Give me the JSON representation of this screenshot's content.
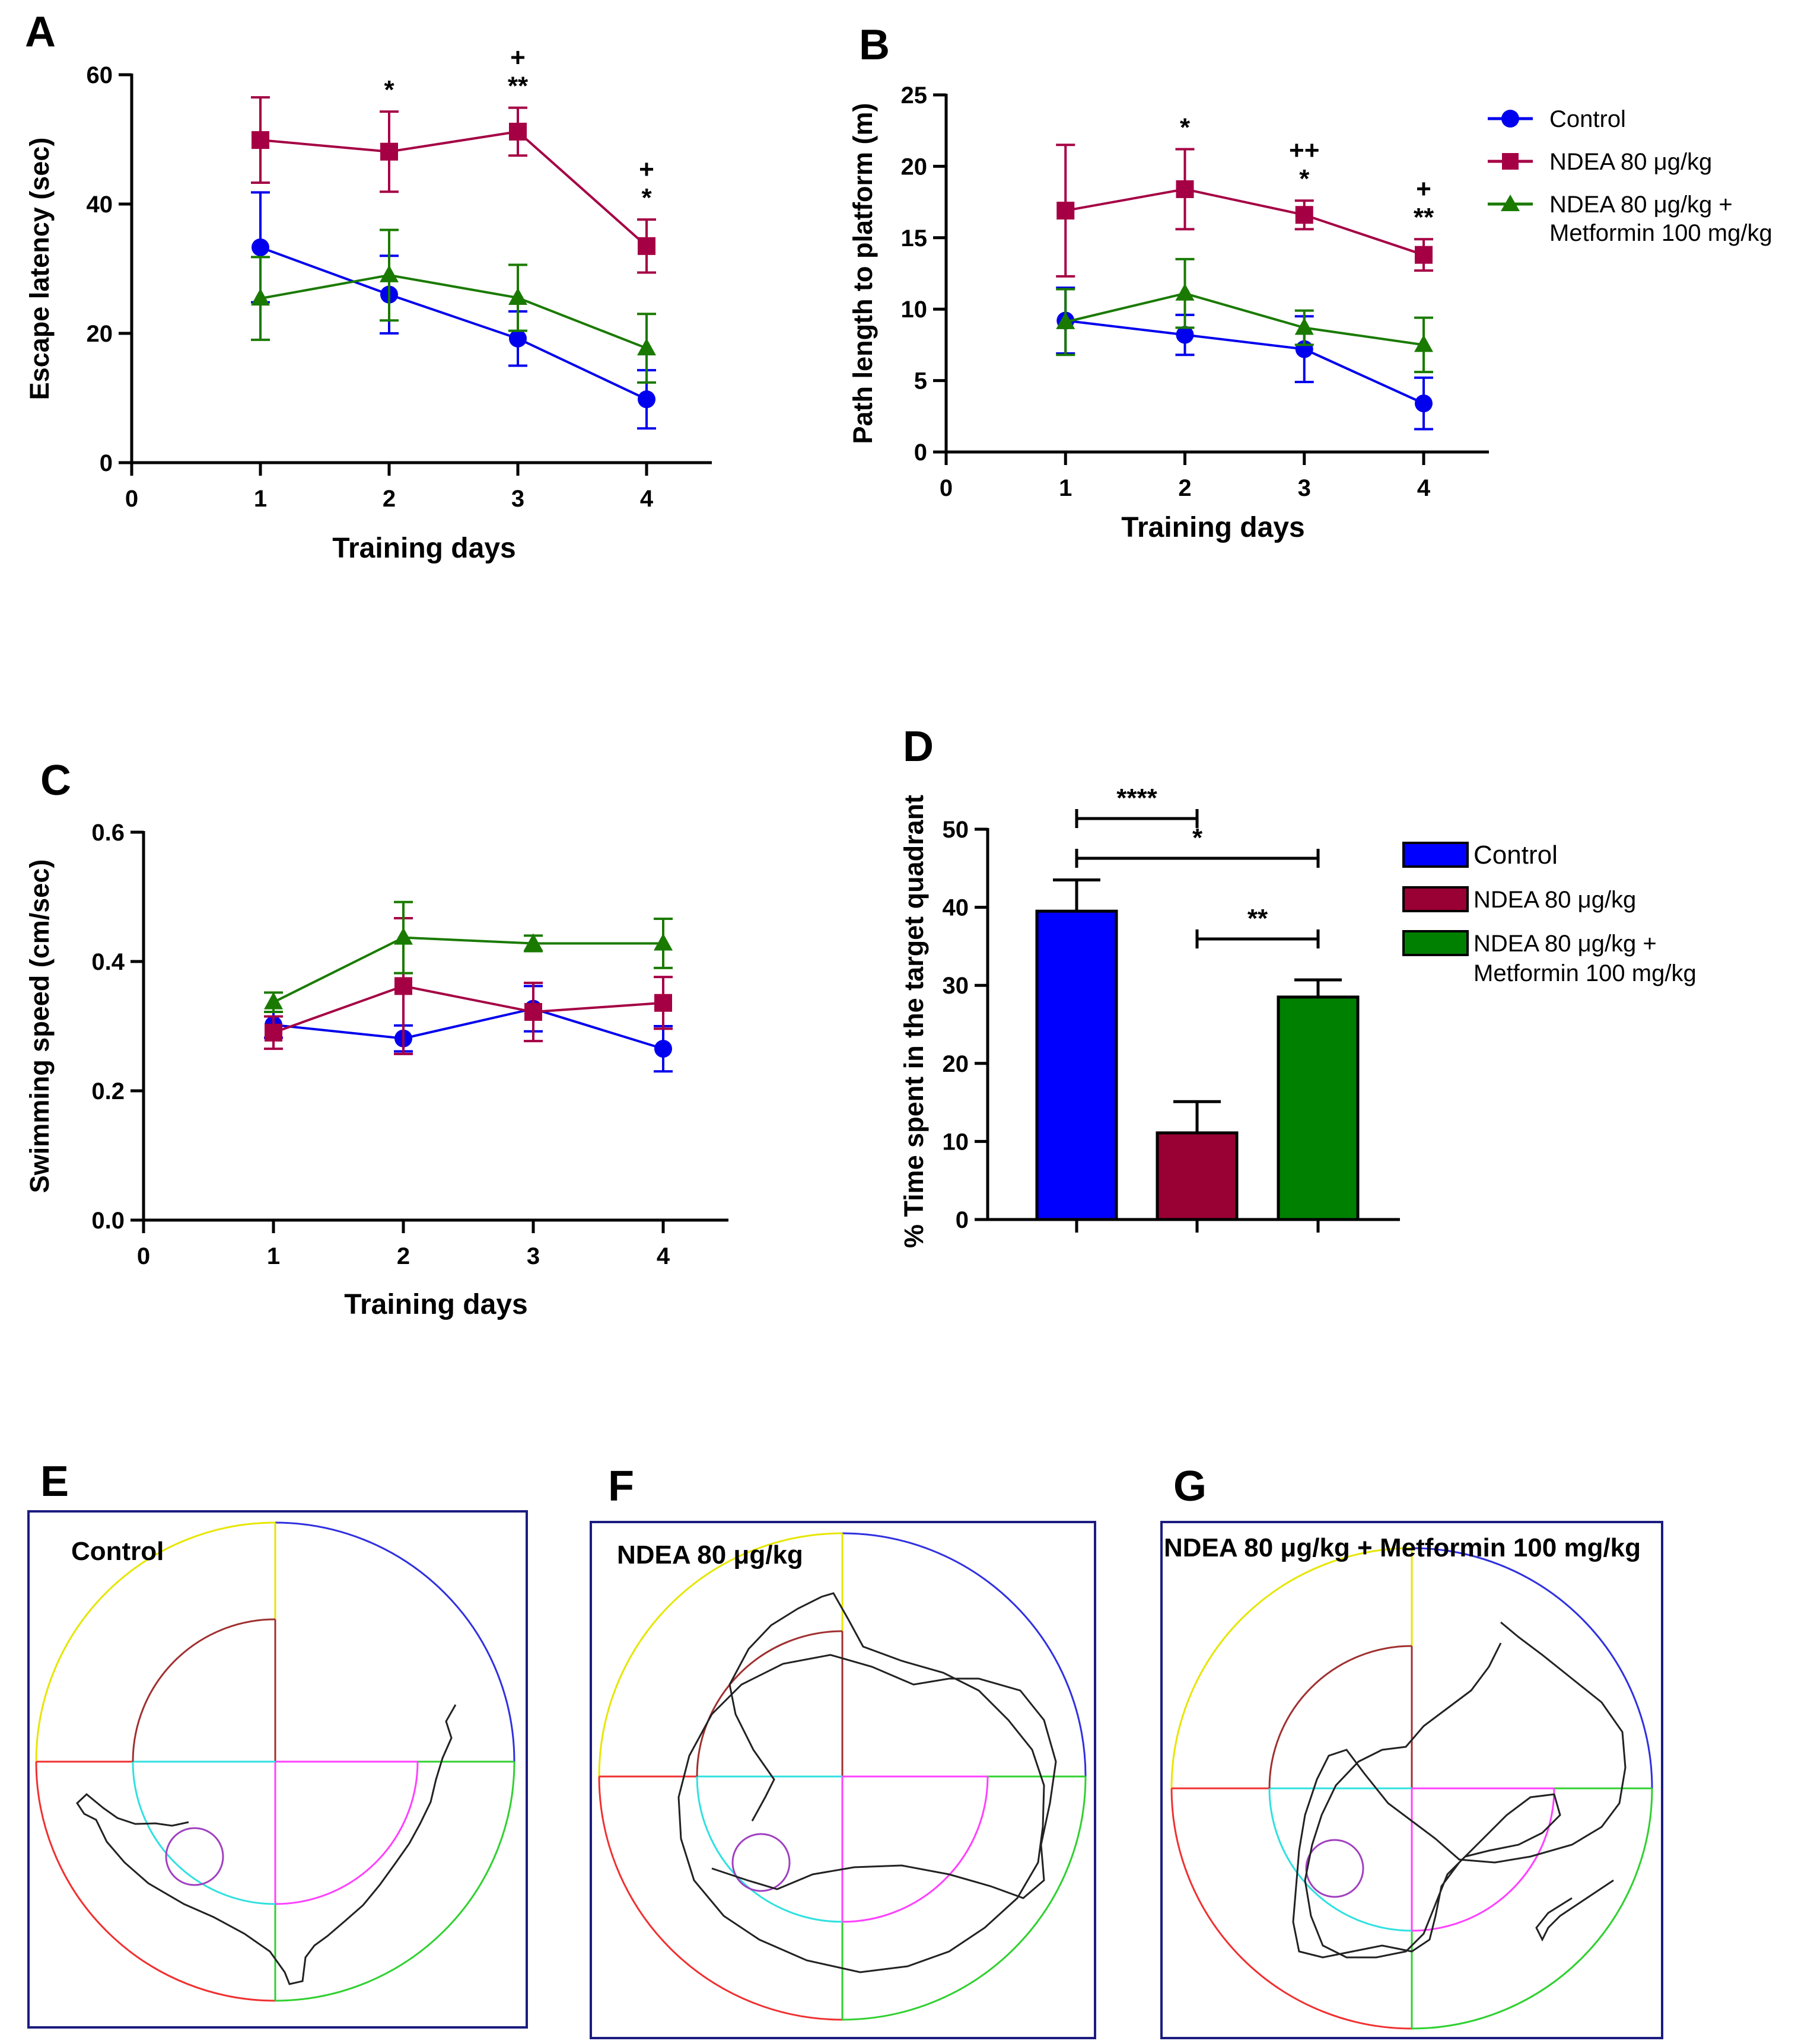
{
  "panels": {
    "A": {
      "letter": "A"
    },
    "B": {
      "letter": "B"
    },
    "C": {
      "letter": "C"
    },
    "D": {
      "letter": "D"
    },
    "E": {
      "letter": "E",
      "title": "Control"
    },
    "F": {
      "letter": "F",
      "title": "NDEA 80 μg/kg"
    },
    "G": {
      "letter": "G",
      "title": "NDEA 80 μg/kg + Metformin 100 mg/kg"
    }
  },
  "legend_lines": [
    {
      "label": "Control",
      "color": "#0000ee",
      "marker": "circle"
    },
    {
      "label": "NDEA 80 μg/kg",
      "color": "#a50044",
      "marker": "square"
    },
    {
      "label": "NDEA 80 μg/kg +",
      "label2": "Metformin 100 mg/kg",
      "color": "#1a7a00",
      "marker": "triangle"
    }
  ],
  "legend_bars": [
    {
      "label": "Control",
      "color": "#0000ff"
    },
    {
      "label": "NDEA 80 μg/kg",
      "color": "#990033"
    },
    {
      "label": "NDEA 80 μg/kg +",
      "label2": "Metformin 100 mg/kg",
      "color": "#008000"
    }
  ],
  "chart_data": [
    {
      "panel": "A",
      "type": "line",
      "xlabel": "Training days",
      "ylabel": "Escape latency (sec)",
      "x": [
        1,
        2,
        3,
        4
      ],
      "xlim": [
        0,
        4
      ],
      "ylim": [
        0,
        60
      ],
      "xticks": [
        0,
        1,
        2,
        3,
        4
      ],
      "yticks": [
        0,
        20,
        40,
        60
      ],
      "series": [
        {
          "name": "Control",
          "color": "#0000ee",
          "marker": "circle",
          "values": [
            33.3,
            26,
            19.2,
            9.8
          ],
          "error": [
            8.5,
            6,
            4.2,
            4.5
          ]
        },
        {
          "name": "NDEA 80 μg/kg",
          "color": "#a50044",
          "marker": "square",
          "values": [
            49.9,
            48.1,
            51.2,
            33.5
          ],
          "error": [
            6.6,
            6.2,
            3.7,
            4.1
          ]
        },
        {
          "name": "NDEA 80 μg/kg + Metformin 100 mg/kg",
          "color": "#1a7a00",
          "marker": "triangle",
          "values": [
            25.4,
            29,
            25.5,
            17.7
          ],
          "error": [
            6.4,
            7,
            5.1,
            5.3
          ]
        }
      ],
      "annotations": [
        {
          "x": 2,
          "lines": [
            "*"
          ]
        },
        {
          "x": 3,
          "lines": [
            "+",
            "**"
          ]
        },
        {
          "x": 4,
          "lines": [
            "+",
            "*"
          ]
        }
      ]
    },
    {
      "panel": "B",
      "type": "line",
      "xlabel": "Training days",
      "ylabel": "Path length to platform (m)",
      "x": [
        1,
        2,
        3,
        4
      ],
      "xlim": [
        0,
        4
      ],
      "ylim": [
        0,
        25
      ],
      "xticks": [
        0,
        1,
        2,
        3,
        4
      ],
      "yticks": [
        0,
        5,
        10,
        15,
        20,
        25
      ],
      "series": [
        {
          "name": "Control",
          "color": "#0000ee",
          "marker": "circle",
          "values": [
            9.2,
            8.2,
            7.2,
            3.4
          ],
          "error": [
            2.3,
            1.4,
            2.3,
            1.8
          ]
        },
        {
          "name": "NDEA 80 μg/kg",
          "color": "#a50044",
          "marker": "square",
          "values": [
            16.9,
            18.4,
            16.6,
            13.8
          ],
          "error": [
            4.6,
            2.8,
            1.0,
            1.1
          ]
        },
        {
          "name": "NDEA 80 μg/kg + Metformin 100 mg/kg",
          "color": "#1a7a00",
          "marker": "triangle",
          "values": [
            9.1,
            11.1,
            8.7,
            7.5
          ],
          "error": [
            2.3,
            2.4,
            1.2,
            1.9
          ]
        }
      ],
      "annotations": [
        {
          "x": 2,
          "lines": [
            "*"
          ]
        },
        {
          "x": 3,
          "lines": [
            "++",
            "*"
          ]
        },
        {
          "x": 4,
          "lines": [
            "+",
            "**"
          ]
        }
      ]
    },
    {
      "panel": "C",
      "type": "line",
      "xlabel": "Training days",
      "ylabel": "Swimming speed  (cm/sec)",
      "x": [
        1,
        2,
        3,
        4
      ],
      "xlim": [
        0,
        4
      ],
      "ylim": [
        0,
        0.6
      ],
      "xticks": [
        0,
        1,
        2,
        3,
        4
      ],
      "yticks": [
        0.0,
        0.2,
        0.4,
        0.6
      ],
      "ytick_labels": [
        "0.0",
        "0.2",
        "0.4",
        "0.6"
      ],
      "series": [
        {
          "name": "Control",
          "color": "#0000ee",
          "marker": "circle",
          "values": [
            0.302,
            0.281,
            0.327,
            0.265
          ],
          "error": [
            0.02,
            0.02,
            0.035,
            0.035
          ]
        },
        {
          "name": "NDEA 80 μg/kg",
          "color": "#a50044",
          "marker": "square",
          "values": [
            0.29,
            0.362,
            0.322,
            0.336
          ],
          "error": [
            0.025,
            0.105,
            0.045,
            0.04
          ]
        },
        {
          "name": "NDEA 80 μg/kg + Metformin 100 mg/kg",
          "color": "#1a7a00",
          "marker": "triangle",
          "values": [
            0.337,
            0.437,
            0.428,
            0.428
          ],
          "error": [
            0.015,
            0.055,
            0.012,
            0.038
          ]
        }
      ]
    },
    {
      "panel": "D",
      "type": "bar",
      "ylabel": "% Time spent in the target quadrant",
      "categories": [
        "Control",
        "NDEA 80 μg/kg",
        "NDEA 80 μg/kg + Metformin 100 mg/kg"
      ],
      "values": [
        39.5,
        11.1,
        28.5
      ],
      "error": [
        4.0,
        4.0,
        2.2
      ],
      "colors": [
        "#0000ff",
        "#990033",
        "#008000"
      ],
      "ylim": [
        0,
        50
      ],
      "yticks": [
        0,
        10,
        20,
        30,
        40,
        50
      ],
      "comparisons": [
        {
          "from": 0,
          "to": 1,
          "label": "****"
        },
        {
          "from": 0,
          "to": 2,
          "label": "*"
        },
        {
          "from": 1,
          "to": 2,
          "label": "**"
        }
      ]
    }
  ]
}
